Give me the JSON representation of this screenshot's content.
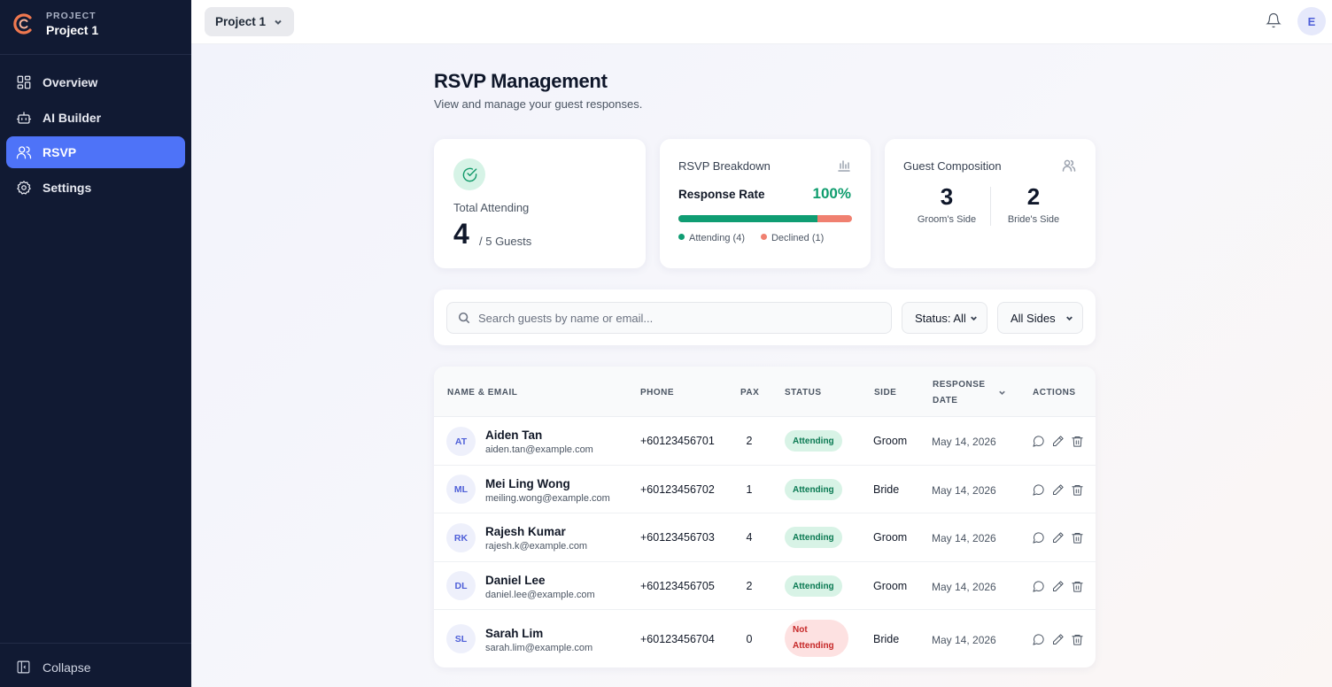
{
  "sidebar": {
    "project_label": "PROJECT",
    "project_name": "Project 1",
    "items": [
      {
        "label": "Overview",
        "icon": "grid-icon"
      },
      {
        "label": "AI Builder",
        "icon": "robot-icon"
      },
      {
        "label": "RSVP",
        "icon": "users-icon",
        "active": true
      },
      {
        "label": "Settings",
        "icon": "gear-icon"
      }
    ],
    "collapse_label": "Collapse"
  },
  "header": {
    "project_select": "Project 1",
    "avatar_initial": "E"
  },
  "page": {
    "title": "RSVP Management",
    "subtitle": "View and manage your guest responses."
  },
  "stats": {
    "total_attending": {
      "label": "Total Attending",
      "value": "4",
      "of": "/ 5 Guests"
    },
    "breakdown": {
      "title": "RSVP Breakdown",
      "rate_label": "Response Rate",
      "rate_value": "100%",
      "attending_fraction": 0.8,
      "attending_label": "Attending (4)",
      "declined_label": "Declined (1)",
      "colors": {
        "attending": "#0f9d73",
        "declined": "#f08070"
      }
    },
    "composition": {
      "title": "Guest Composition",
      "groom_count": "3",
      "groom_label": "Groom's Side",
      "bride_count": "2",
      "bride_label": "Bride's Side"
    }
  },
  "filters": {
    "search_placeholder": "Search guests by name or email...",
    "status": "Status: All",
    "side": "All Sides"
  },
  "table": {
    "headers": {
      "name": "NAME & EMAIL",
      "phone": "PHONE",
      "pax": "PAX",
      "status": "STATUS",
      "side": "SIDE",
      "date_line1": "RESPONSE",
      "date_line2": "DATE",
      "actions": "ACTIONS"
    },
    "rows": [
      {
        "initials": "AT",
        "name": "Aiden Tan",
        "email": "aiden.tan@example.com",
        "phone": "+60123456701",
        "pax": "2",
        "status": "Attending",
        "side": "Groom",
        "date": "May 14, 2026"
      },
      {
        "initials": "ML",
        "name": "Mei Ling Wong",
        "email": "meiling.wong@example.com",
        "phone": "+60123456702",
        "pax": "1",
        "status": "Attending",
        "side": "Bride",
        "date": "May 14, 2026"
      },
      {
        "initials": "RK",
        "name": "Rajesh Kumar",
        "email": "rajesh.k@example.com",
        "phone": "+60123456703",
        "pax": "4",
        "status": "Attending",
        "side": "Groom",
        "date": "May 14, 2026"
      },
      {
        "initials": "DL",
        "name": "Daniel Lee",
        "email": "daniel.lee@example.com",
        "phone": "+60123456705",
        "pax": "2",
        "status": "Attending",
        "side": "Groom",
        "date": "May 14, 2026"
      },
      {
        "initials": "SL",
        "name": "Sarah Lim",
        "email": "sarah.lim@example.com",
        "phone": "+60123456704",
        "pax": "0",
        "status_line1": "Not",
        "status_line2": "Attending",
        "side": "Bride",
        "date": "May 14, 2026"
      }
    ]
  }
}
